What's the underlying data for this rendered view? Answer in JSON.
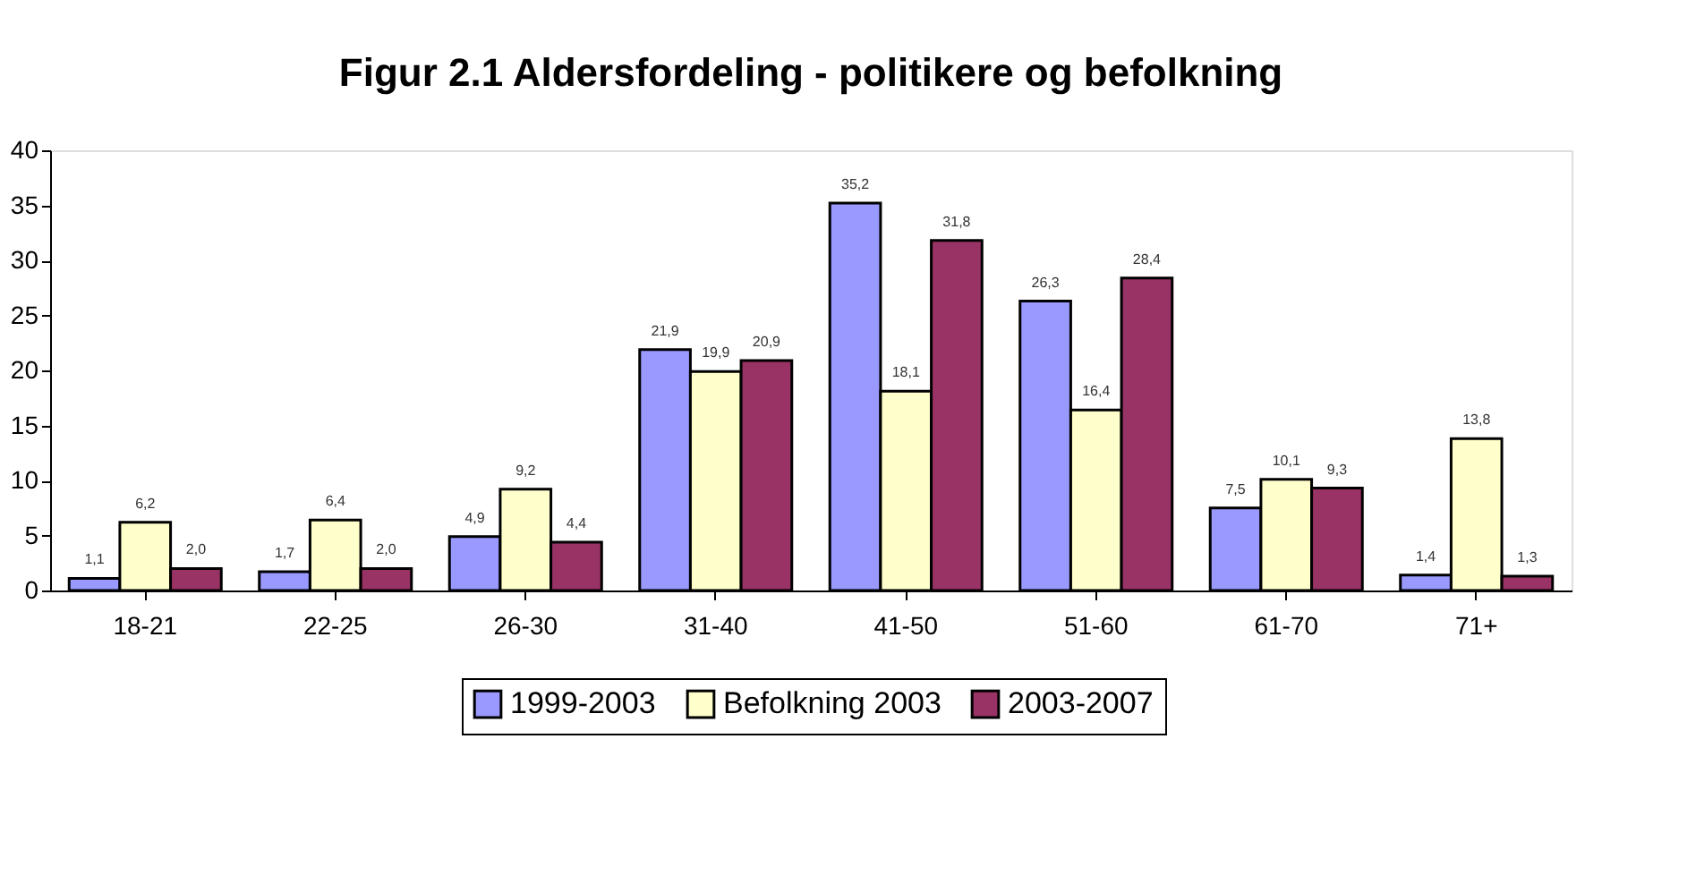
{
  "chart_data": {
    "type": "bar",
    "title": "Figur 2.1 Aldersfordeling - politikere og befolkning",
    "categories": [
      "18-21",
      "22-25",
      "26-30",
      "31-40",
      "41-50",
      "51-60",
      "61-70",
      "71+"
    ],
    "series": [
      {
        "name": "1999-2003",
        "color": "#9999ff",
        "values": [
          1.1,
          1.7,
          4.9,
          21.9,
          35.2,
          26.3,
          7.5,
          1.4
        ],
        "value_labels": [
          "1,1",
          "1,7",
          "4,9",
          "21,9",
          "35,2",
          "26,3",
          "7,5",
          "1,4"
        ]
      },
      {
        "name": "Befolkning 2003",
        "color": "#ffffcc",
        "values": [
          6.2,
          6.4,
          9.2,
          19.9,
          18.1,
          16.4,
          10.1,
          13.8
        ],
        "value_labels": [
          "6,2",
          "6,4",
          "9,2",
          "19,9",
          "18,1",
          "16,4",
          "10,1",
          "13,8"
        ]
      },
      {
        "name": "2003-2007",
        "color": "#993366",
        "values": [
          2.0,
          2.0,
          4.4,
          20.9,
          31.8,
          28.4,
          9.3,
          1.3
        ],
        "value_labels": [
          "2,0",
          "2,0",
          "4,4",
          "20,9",
          "31,8",
          "28,4",
          "9,3",
          "1,3"
        ]
      }
    ],
    "ylim": [
      0,
      40
    ],
    "yticks": [
      0,
      5,
      10,
      15,
      20,
      25,
      30,
      35,
      40
    ],
    "grid": false,
    "legend": "bottom"
  }
}
